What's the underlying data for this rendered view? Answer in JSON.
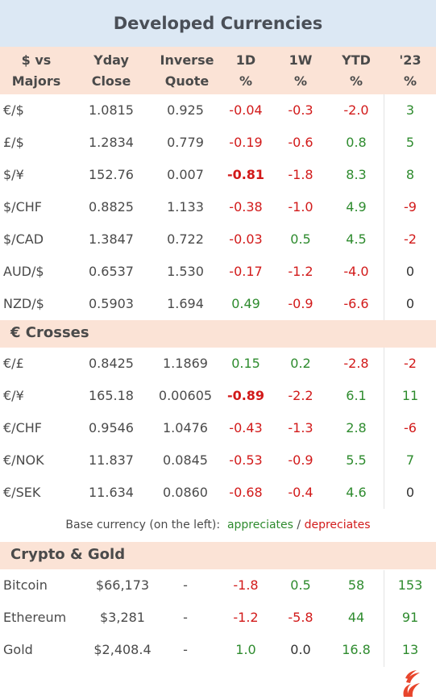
{
  "title": "Developed Currencies",
  "headers": [
    {
      "line1": "$  vs",
      "line2": "Majors"
    },
    {
      "line1": "Yday",
      "line2": "Close"
    },
    {
      "line1": "Inverse",
      "line2": "Quote"
    },
    {
      "line1": "1D",
      "line2": "%"
    },
    {
      "line1": "1W",
      "line2": "%"
    },
    {
      "line1": "YTD",
      "line2": "%"
    },
    {
      "line1": "'23",
      "line2": "%"
    }
  ],
  "sections": [
    {
      "title": "",
      "rows": [
        {
          "pair": "€/$",
          "close": "1.0815",
          "inverse": "0.925",
          "d1": "-0.04",
          "w1": "-0.3",
          "ytd": "-2.0",
          "y23": "3"
        },
        {
          "pair": "£/$",
          "close": "1.2834",
          "inverse": "0.779",
          "d1": "-0.19",
          "w1": "-0.6",
          "ytd": "0.8",
          "y23": "5"
        },
        {
          "pair": "$/¥",
          "close": "152.76",
          "inverse": "0.007",
          "d1": "-0.81",
          "w1": "-1.8",
          "ytd": "8.3",
          "y23": "8",
          "d1_bold": true
        },
        {
          "pair": "$/CHF",
          "close": "0.8825",
          "inverse": "1.133",
          "d1": "-0.38",
          "w1": "-1.0",
          "ytd": "4.9",
          "y23": "-9"
        },
        {
          "pair": "$/CAD",
          "close": "1.3847",
          "inverse": "0.722",
          "d1": "-0.03",
          "w1": "0.5",
          "ytd": "4.5",
          "y23": "-2"
        },
        {
          "pair": "AUD/$",
          "close": "0.6537",
          "inverse": "1.530",
          "d1": "-0.17",
          "w1": "-1.2",
          "ytd": "-4.0",
          "y23": "0"
        },
        {
          "pair": "NZD/$",
          "close": "0.5903",
          "inverse": "1.694",
          "d1": "0.49",
          "w1": "-0.9",
          "ytd": "-6.6",
          "y23": "0"
        }
      ]
    },
    {
      "title": "€ Crosses",
      "rows": [
        {
          "pair": "€/£",
          "close": "0.8425",
          "inverse": "1.1869",
          "d1": "0.15",
          "w1": "0.2",
          "ytd": "-2.8",
          "y23": "-2"
        },
        {
          "pair": "€/¥",
          "close": "165.18",
          "inverse": "0.00605",
          "d1": "-0.89",
          "w1": "-2.2",
          "ytd": "6.1",
          "y23": "11",
          "d1_bold": true
        },
        {
          "pair": "€/CHF",
          "close": "0.9546",
          "inverse": "1.0476",
          "d1": "-0.43",
          "w1": "-1.3",
          "ytd": "2.8",
          "y23": "-6"
        },
        {
          "pair": "€/NOK",
          "close": "11.837",
          "inverse": "0.0845",
          "d1": "-0.53",
          "w1": "-0.9",
          "ytd": "5.5",
          "y23": "7"
        },
        {
          "pair": "€/SEK",
          "close": "11.634",
          "inverse": "0.0860",
          "d1": "-0.68",
          "w1": "-0.4",
          "ytd": "4.6",
          "y23": "0"
        }
      ]
    },
    {
      "title": "Crypto & Gold",
      "rows": [
        {
          "pair": "Bitcoin",
          "close": "$66,173",
          "inverse": "-",
          "d1": "-1.8",
          "w1": "0.5",
          "ytd": "58",
          "y23": "153"
        },
        {
          "pair": "Ethereum",
          "close": "$3,281",
          "inverse": "-",
          "d1": "-1.2",
          "w1": "-5.8",
          "ytd": "44",
          "y23": "91"
        },
        {
          "pair": "Gold",
          "close": "$2,408.4",
          "inverse": "-",
          "d1": "1.0",
          "w1": "0.0",
          "ytd": "16.8",
          "y23": "13"
        }
      ]
    }
  ],
  "legend": {
    "prefix": "Base currency (on the left):",
    "positive": "appreciates",
    "separator": "/",
    "negative": "depreciates"
  },
  "colors": {
    "positive": "#2e8b2e",
    "negative": "#d21a1a",
    "title_bg": "#dce8f4",
    "header_bg": "#fbe3d6",
    "logo": "#e8452c"
  },
  "logo_icon": "flame-logo-icon",
  "chart_data": {
    "type": "table",
    "title": "Developed Currencies",
    "columns": [
      "$  vs Majors",
      "Yday Close",
      "Inverse Quote",
      "1D %",
      "1W %",
      "YTD %",
      "'23 %"
    ]
  }
}
